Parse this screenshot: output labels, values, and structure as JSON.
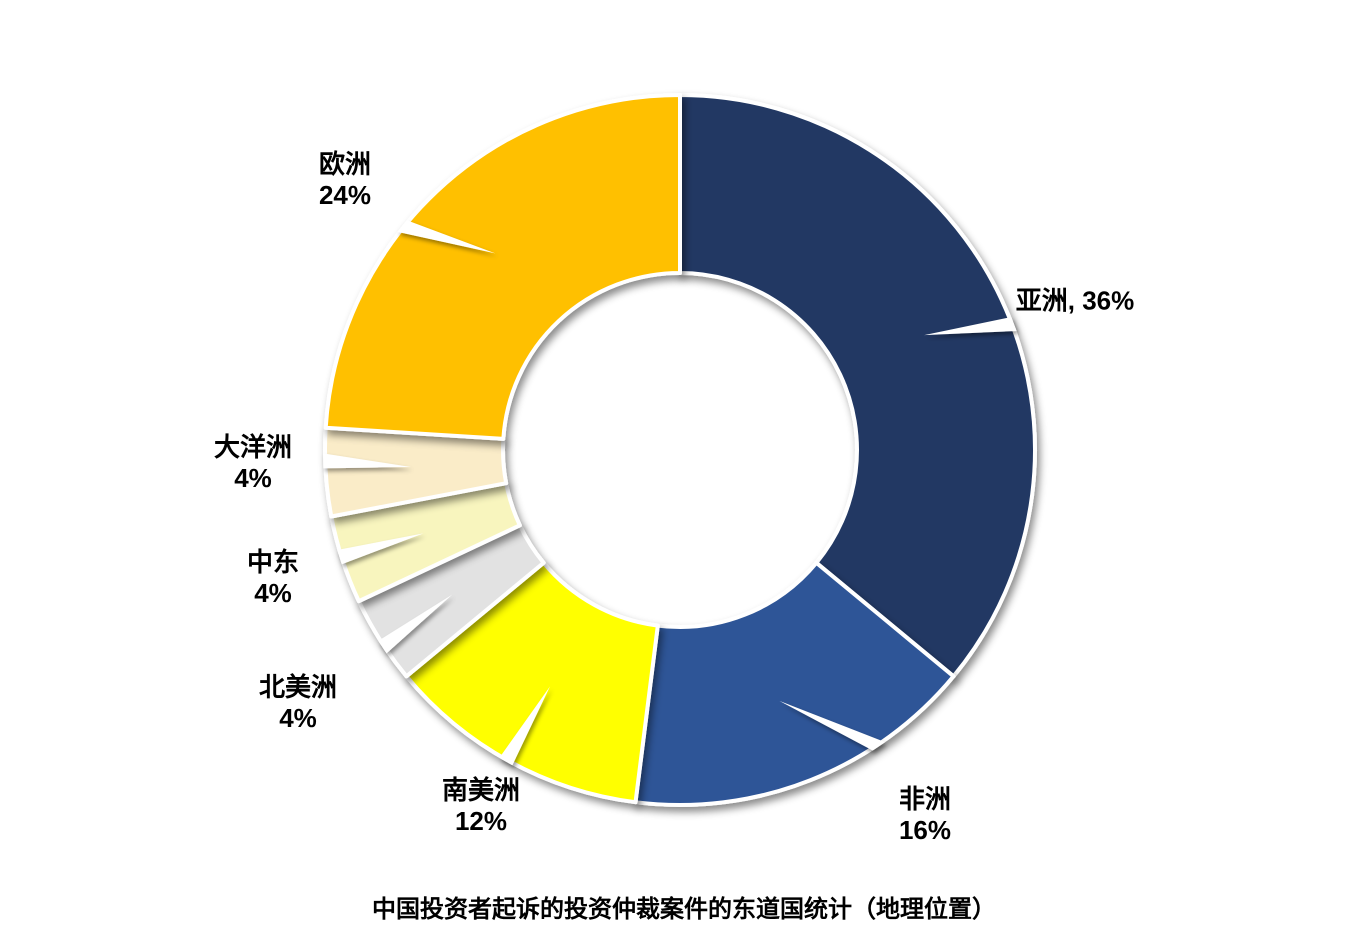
{
  "chart_data": {
    "type": "pie",
    "subtype": "donut",
    "title": "中国投资者起诉的投资仲裁案件的东道国统计（地理位置）",
    "unit": "%",
    "direction": "clockwise",
    "start_angle_deg": 0,
    "hole_ratio": 0.5,
    "legend": "none",
    "label_position": "outside",
    "background_color": "#FFFFFF",
    "categories": [
      "亚洲",
      "非洲",
      "南美洲",
      "北美洲",
      "中东",
      "大洋洲",
      "欧洲"
    ],
    "values": [
      36,
      16,
      12,
      4,
      4,
      4,
      24
    ],
    "slices": [
      {
        "label": "亚洲",
        "value": 36,
        "color": "#203864",
        "label_lines": [
          "亚洲, 36%"
        ]
      },
      {
        "label": "非洲",
        "value": 16,
        "color": "#2F5597",
        "label_lines": [
          "非洲",
          "16%"
        ]
      },
      {
        "label": "南美洲",
        "value": 12,
        "color": "#FFFF00",
        "label_lines": [
          "南美洲",
          "12%"
        ]
      },
      {
        "label": "北美洲",
        "value": 4,
        "color": "#E2E2E2",
        "label_lines": [
          "北美洲",
          "4%"
        ]
      },
      {
        "label": "中东",
        "value": 4,
        "color": "#F8F5BE",
        "label_lines": [
          "中东",
          "4%"
        ]
      },
      {
        "label": "大洋洲",
        "value": 4,
        "color": "#FAECC8",
        "label_lines": [
          "大洋洲",
          "4%"
        ]
      },
      {
        "label": "欧洲",
        "value": 24,
        "color": "#FFC000",
        "label_lines": [
          "欧洲",
          "24%"
        ]
      }
    ]
  }
}
